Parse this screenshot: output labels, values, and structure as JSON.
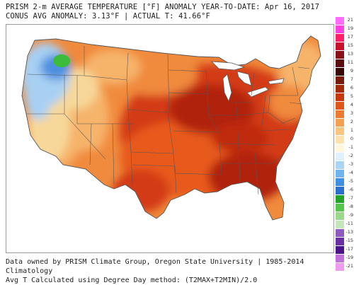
{
  "header": {
    "line1": "PRISM 2-m AVERAGE TEMPERATURE [°F] ANOMALY YEAR-TO-DATE: Apr 16, 2017",
    "line2": "CONUS AVG ANOMALY: 3.13°F | ACTUAL T: 41.66°F"
  },
  "footer": {
    "line1": "Data owned by PRISM Climate Group, Oregon State University | 1985-2014 Climatology",
    "line2": "Avg T Calculated using Degree Day method: (T2MAX+T2MIN)/2.0"
  },
  "colors": {
    "deep_red": "#b1200a",
    "red": "#d33a12",
    "red_orange": "#e85a1c",
    "orange": "#f08a3c",
    "light_orange": "#f6b36a",
    "tan": "#f7d89a",
    "pale_yellow": "#faf0c4",
    "light_blue": "#a7d0f3",
    "blue": "#4e8fe0",
    "green": "#3dbb3a",
    "water": "#ffffff",
    "border": "#555555"
  },
  "legend": {
    "labels": [
      "21",
      "19",
      "17",
      "15",
      "13",
      "11",
      "9",
      "7",
      "6",
      "5",
      "4",
      "3",
      "2",
      "1",
      "0",
      "-1",
      "-2",
      "-3",
      "-4",
      "-5",
      "-6",
      "-7",
      "-8",
      "-9",
      "-11",
      "-13",
      "-15",
      "-17",
      "-19",
      "-21"
    ],
    "colors": [
      "#ff6bff",
      "#ff3fe0",
      "#ff1f6b",
      "#c8102e",
      "#8a0e1a",
      "#5a0a10",
      "#3a0808",
      "#7a1a0a",
      "#a52a0a",
      "#c8380c",
      "#e0561a",
      "#ee7a2e",
      "#f5a050",
      "#f8c67e",
      "#fbe2b0",
      "#fff6dc",
      "#dff0ff",
      "#a8d4f5",
      "#6fb4ee",
      "#3f8fe2",
      "#2a6fd0",
      "#21a52a",
      "#55c64a",
      "#9ad88a",
      "#c5e6bd",
      "#8e5ac0",
      "#6a2fa0",
      "#4a148a",
      "#c070d8",
      "#ee9cf0"
    ]
  }
}
